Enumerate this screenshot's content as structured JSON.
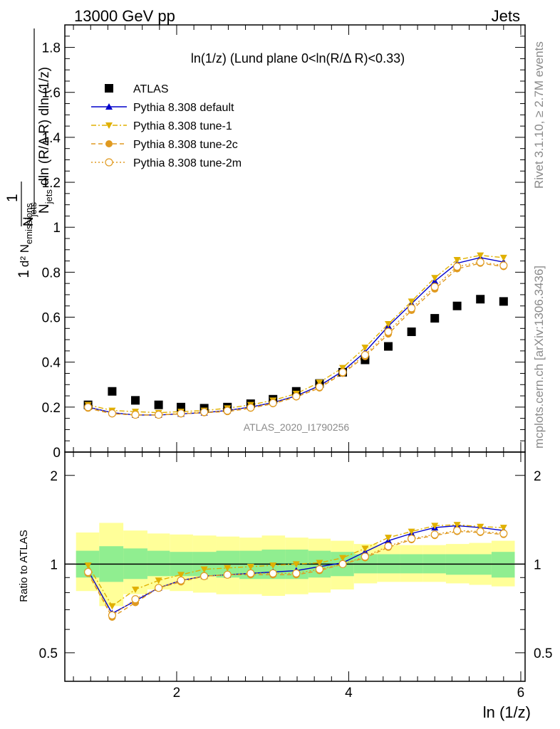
{
  "header": {
    "left": "13000 GeV pp",
    "right": "Jets"
  },
  "side_labels": {
    "rivet": "Rivet 3.1.10, ≥ 2.7M events",
    "mcplots": "mcplots.cern.ch [arXiv:1306.3436]"
  },
  "chart_data": [
    {
      "type": "scatter",
      "title": "ln(1/z) (Lund plane 0<ln(R/Δ R)<0.33)",
      "analysis_label": "ATLAS_2020_I1790256",
      "xlabel": "ln (1/z)",
      "ylabel": "1/N_jets d²N_emissions / dln(R/Δ R) dln(1/z)",
      "xlim": [
        0.7,
        6.05
      ],
      "ylim": [
        0,
        1.9
      ],
      "yticks": [
        0,
        0.2,
        0.4,
        0.6,
        0.8,
        1,
        1.2,
        1.4,
        1.6,
        1.8
      ],
      "xticks": [
        2,
        4,
        6
      ],
      "legend_position": "top-left",
      "x": [
        0.97,
        1.25,
        1.52,
        1.79,
        2.05,
        2.32,
        2.59,
        2.86,
        3.12,
        3.39,
        3.66,
        3.93,
        4.19,
        4.46,
        4.73,
        5.0,
        5.26,
        5.53,
        5.8
      ],
      "series": [
        {
          "name": "ATLAS",
          "color": "#000000",
          "marker": "square",
          "line": "none",
          "values": [
            0.21,
            0.27,
            0.23,
            0.21,
            0.2,
            0.195,
            0.2,
            0.215,
            0.235,
            0.27,
            0.305,
            0.355,
            0.41,
            0.47,
            0.535,
            0.595,
            0.65,
            0.68,
            0.67
          ]
        },
        {
          "name": "Pythia 8.308 default",
          "color": "#0000cc",
          "marker": "triangle-up",
          "line": "solid",
          "values": [
            0.2,
            0.175,
            0.165,
            0.165,
            0.17,
            0.175,
            0.185,
            0.2,
            0.22,
            0.25,
            0.295,
            0.36,
            0.445,
            0.56,
            0.66,
            0.76,
            0.84,
            0.865,
            0.845
          ]
        },
        {
          "name": "Pythia 8.308 tune-1",
          "color": "#e0b000",
          "marker": "triangle-down",
          "line": "dashdot",
          "values": [
            0.21,
            0.185,
            0.18,
            0.175,
            0.18,
            0.185,
            0.195,
            0.21,
            0.23,
            0.26,
            0.31,
            0.375,
            0.465,
            0.57,
            0.67,
            0.775,
            0.855,
            0.875,
            0.865
          ]
        },
        {
          "name": "Pythia 8.308 tune-2c",
          "color": "#e09a20",
          "marker": "circle",
          "line": "dashed",
          "values": [
            0.195,
            0.17,
            0.165,
            0.165,
            0.17,
            0.175,
            0.18,
            0.195,
            0.215,
            0.245,
            0.285,
            0.35,
            0.425,
            0.525,
            0.63,
            0.725,
            0.815,
            0.84,
            0.825
          ]
        },
        {
          "name": "Pythia 8.308 tune-2m",
          "color": "#e09a20",
          "marker": "open-circle",
          "line": "dotted",
          "values": [
            0.2,
            0.172,
            0.166,
            0.166,
            0.172,
            0.178,
            0.184,
            0.198,
            0.218,
            0.248,
            0.29,
            0.355,
            0.432,
            0.535,
            0.64,
            0.735,
            0.825,
            0.845,
            0.83
          ]
        }
      ]
    },
    {
      "type": "scatter",
      "ylabel": "Ratio to ATLAS",
      "xlabel": "ln (1/z)",
      "xlim": [
        0.7,
        6.05
      ],
      "ylim": [
        0.4,
        2.4
      ],
      "scale": "log",
      "yticks": [
        0.5,
        1,
        2
      ],
      "xticks": [
        2,
        4,
        6
      ],
      "band_edges": [
        0.83,
        1.1,
        1.38,
        1.66,
        1.92,
        2.19,
        2.46,
        2.73,
        2.99,
        3.26,
        3.53,
        3.79,
        4.06,
        4.33,
        4.6,
        4.86,
        5.13,
        5.4,
        5.66,
        5.93
      ],
      "band_inner": [
        [
          0.9,
          1.11
        ],
        [
          0.87,
          1.15
        ],
        [
          0.89,
          1.13
        ],
        [
          0.91,
          1.11
        ],
        [
          0.91,
          1.1
        ],
        [
          0.91,
          1.1
        ],
        [
          0.9,
          1.11
        ],
        [
          0.89,
          1.11
        ],
        [
          0.89,
          1.12
        ],
        [
          0.89,
          1.12
        ],
        [
          0.9,
          1.11
        ],
        [
          0.91,
          1.1
        ],
        [
          0.93,
          1.08
        ],
        [
          0.93,
          1.08
        ],
        [
          0.93,
          1.08
        ],
        [
          0.93,
          1.08
        ],
        [
          0.92,
          1.08
        ],
        [
          0.92,
          1.08
        ],
        [
          0.9,
          1.1
        ]
      ],
      "band_outer": [
        [
          0.81,
          1.28
        ],
        [
          0.72,
          1.38
        ],
        [
          0.79,
          1.3
        ],
        [
          0.82,
          1.27
        ],
        [
          0.81,
          1.26
        ],
        [
          0.8,
          1.25
        ],
        [
          0.79,
          1.24
        ],
        [
          0.79,
          1.23
        ],
        [
          0.78,
          1.25
        ],
        [
          0.79,
          1.23
        ],
        [
          0.8,
          1.22
        ],
        [
          0.82,
          1.2
        ],
        [
          0.86,
          1.17
        ],
        [
          0.87,
          1.16
        ],
        [
          0.87,
          1.16
        ],
        [
          0.87,
          1.16
        ],
        [
          0.86,
          1.17
        ],
        [
          0.85,
          1.18
        ],
        [
          0.84,
          1.2
        ]
      ],
      "colors": {
        "band_inner": "#90ee90",
        "band_outer": "#ffff99",
        "reference_line": "#000000"
      },
      "series": [
        {
          "name": "Pythia 8.308 default",
          "color": "#0000cc",
          "marker": "triangle-up",
          "line": "solid",
          "values": [
            0.95,
            0.68,
            0.75,
            0.83,
            0.88,
            0.91,
            0.92,
            0.93,
            0.94,
            0.95,
            0.98,
            1.01,
            1.1,
            1.2,
            1.27,
            1.33,
            1.35,
            1.33,
            1.3
          ]
        },
        {
          "name": "Pythia 8.308 tune-1",
          "color": "#e0b000",
          "marker": "triangle-down",
          "line": "dashdot",
          "values": [
            0.99,
            0.72,
            0.82,
            0.88,
            0.92,
            0.96,
            0.97,
            0.98,
            0.99,
            1.0,
            1.01,
            1.05,
            1.13,
            1.23,
            1.29,
            1.35,
            1.36,
            1.34,
            1.33
          ]
        },
        {
          "name": "Pythia 8.308 tune-2c",
          "color": "#e09a20",
          "marker": "circle",
          "line": "dashed",
          "values": [
            0.93,
            0.66,
            0.74,
            0.83,
            0.87,
            0.91,
            0.92,
            0.92,
            0.92,
            0.92,
            0.95,
            1.0,
            1.05,
            1.14,
            1.21,
            1.25,
            1.29,
            1.28,
            1.26
          ]
        },
        {
          "name": "Pythia 8.308 tune-2m",
          "color": "#e09a20",
          "marker": "open-circle",
          "line": "dotted",
          "values": [
            0.94,
            0.67,
            0.76,
            0.83,
            0.88,
            0.91,
            0.92,
            0.93,
            0.93,
            0.93,
            0.96,
            1.0,
            1.06,
            1.15,
            1.22,
            1.26,
            1.3,
            1.29,
            1.27
          ]
        }
      ]
    }
  ]
}
